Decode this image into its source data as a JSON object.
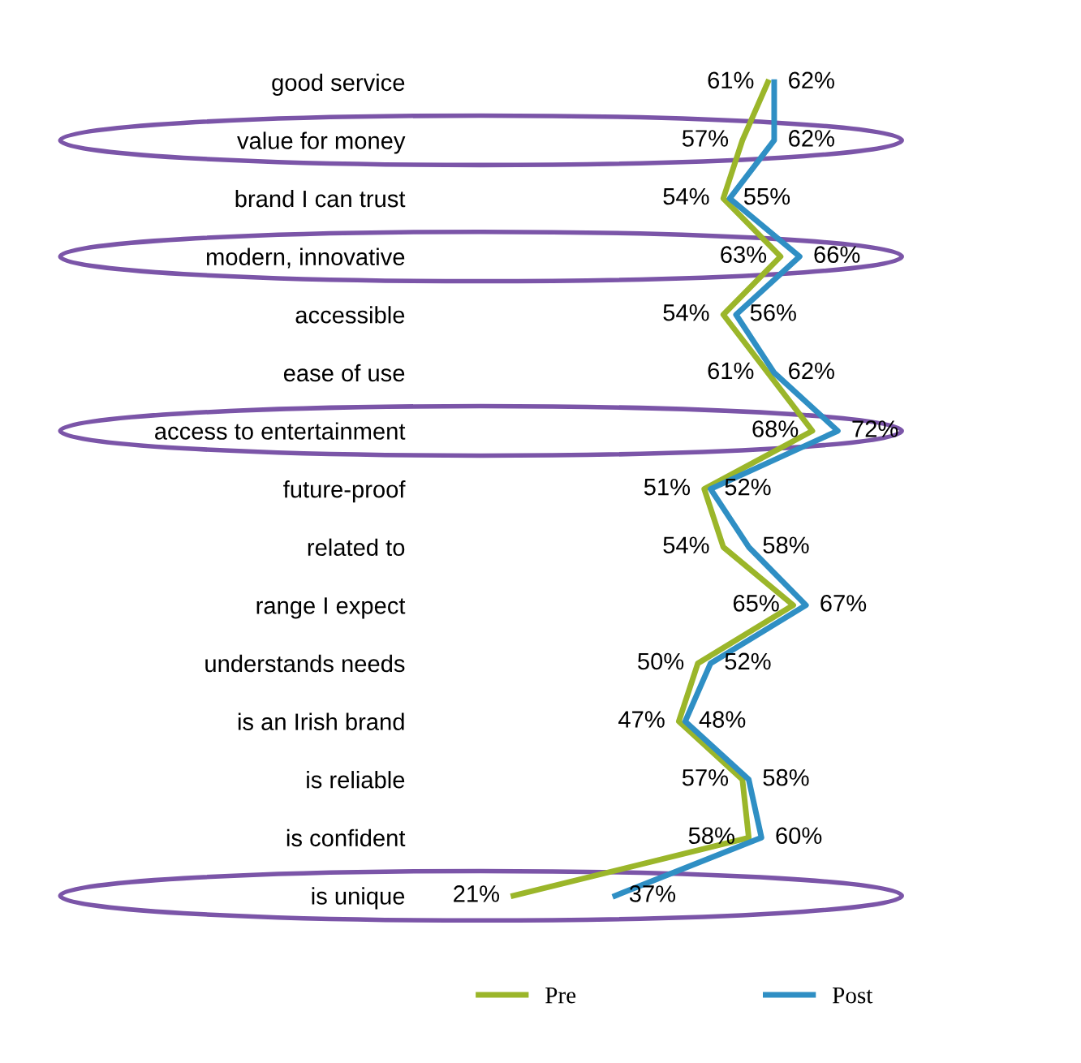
{
  "chart_data": {
    "type": "line",
    "orientation": "horizontal",
    "categories": [
      "good service",
      "value for money",
      "brand I can trust",
      "modern, innovative",
      "accessible",
      "ease of use",
      "access to entertainment",
      "future-proof",
      "related to",
      "range I expect",
      "understands needs",
      "is an Irish brand",
      "is reliable",
      "is confident",
      "is unique"
    ],
    "series": [
      {
        "name": "Pre",
        "color": "#9bb62a",
        "values": [
          61,
          57,
          54,
          63,
          54,
          61,
          68,
          51,
          54,
          65,
          50,
          47,
          57,
          58,
          21
        ],
        "value_labels": [
          "61%",
          "57%",
          "54%",
          "63%",
          "54%",
          "61%",
          "68%",
          "51%",
          "54%",
          "65%",
          "50%",
          "47%",
          "57%",
          "58%",
          "21%"
        ]
      },
      {
        "name": "Post",
        "color": "#2f8fc4",
        "values": [
          62,
          62,
          55,
          66,
          56,
          62,
          72,
          52,
          58,
          67,
          52,
          48,
          58,
          60,
          37
        ],
        "value_labels": [
          "62%",
          "62%",
          "55%",
          "66%",
          "56%",
          "62%",
          "72%",
          "52%",
          "58%",
          "67%",
          "52%",
          "48%",
          "58%",
          "60%",
          "37%"
        ]
      }
    ],
    "legend": "bottom",
    "grid": false,
    "marker": "none",
    "line_style": "solid"
  }
}
